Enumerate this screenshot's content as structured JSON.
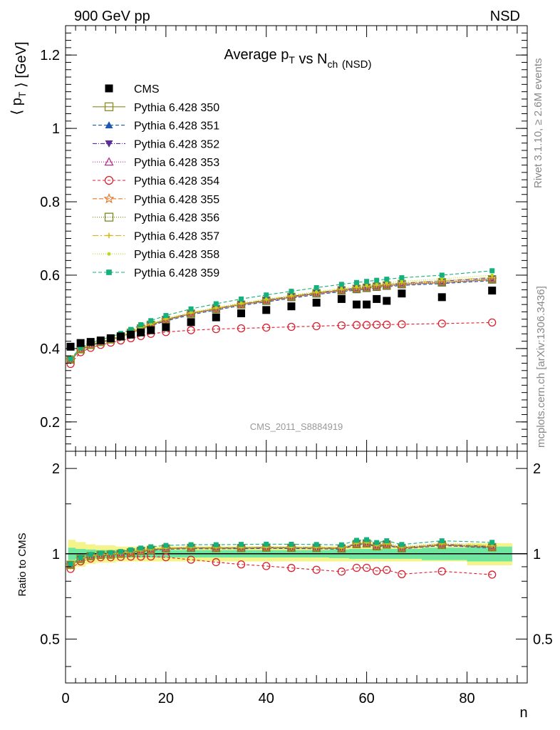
{
  "header": {
    "left": "900 GeV pp",
    "right": "NSD"
  },
  "side_text": {
    "top": "Rivet 3.1.10, ≥ 2.6M events",
    "bottom": "mcplots.cern.ch [arXiv:1306.3436]"
  },
  "chart_data": [
    {
      "type": "scatter",
      "panel": "main",
      "title": "Average p_T vs N_ch (NSD)",
      "ylabel": "⟨ p_T ⟩ [GeV]",
      "xlim": [
        0,
        92
      ],
      "ylim": [
        0.12,
        1.28
      ],
      "yticks": [
        0.2,
        0.4,
        0.6,
        0.8,
        1,
        1.2
      ],
      "ytick_labels": [
        "0.2",
        "0.4",
        "0.6",
        "0.8",
        "1",
        "1.2"
      ],
      "annotation": "CMS_2011_S8884919",
      "x": [
        1,
        3,
        5,
        7,
        9,
        11,
        13,
        15,
        17,
        20,
        25,
        30,
        35,
        40,
        45,
        50,
        55,
        58,
        60,
        62,
        64,
        67,
        75,
        85
      ],
      "series": [
        {
          "name": "CMS",
          "color": "#000000",
          "marker": "square-filled",
          "dash": "none",
          "values": [
            0.405,
            0.415,
            0.418,
            0.422,
            0.428,
            0.433,
            0.438,
            0.444,
            0.45,
            0.458,
            0.472,
            0.485,
            0.496,
            0.505,
            0.515,
            0.525,
            0.535,
            0.52,
            0.52,
            0.535,
            0.53,
            0.55,
            0.54,
            0.558
          ]
        },
        {
          "name": "Pythia 6.428 350",
          "color": "#8b8b22",
          "marker": "square-open",
          "dash": "solid",
          "values": [
            0.37,
            0.398,
            0.41,
            0.418,
            0.425,
            0.433,
            0.443,
            0.455,
            0.465,
            0.478,
            0.495,
            0.508,
            0.52,
            0.53,
            0.54,
            0.55,
            0.558,
            0.562,
            0.565,
            0.568,
            0.571,
            0.575,
            0.58,
            0.588
          ]
        },
        {
          "name": "Pythia 6.428 351",
          "color": "#1e56b4",
          "marker": "triangle-up-filled",
          "dash": "5 3",
          "values": [
            0.368,
            0.396,
            0.408,
            0.416,
            0.423,
            0.431,
            0.441,
            0.452,
            0.462,
            0.475,
            0.492,
            0.505,
            0.517,
            0.527,
            0.537,
            0.547,
            0.555,
            0.559,
            0.562,
            0.565,
            0.568,
            0.572,
            0.577,
            0.585
          ]
        },
        {
          "name": "Pythia 6.428 352",
          "color": "#5b2d9a",
          "marker": "triangle-down-filled",
          "dash": "6 2 1 2",
          "values": [
            0.37,
            0.398,
            0.41,
            0.418,
            0.425,
            0.433,
            0.443,
            0.455,
            0.465,
            0.479,
            0.496,
            0.509,
            0.521,
            0.532,
            0.542,
            0.552,
            0.56,
            0.565,
            0.568,
            0.571,
            0.574,
            0.578,
            0.584,
            0.592
          ]
        },
        {
          "name": "Pythia 6.428 353",
          "color": "#b0308e",
          "marker": "triangle-up-open",
          "dash": "1 2",
          "values": [
            0.369,
            0.397,
            0.409,
            0.417,
            0.424,
            0.432,
            0.442,
            0.453,
            0.463,
            0.477,
            0.494,
            0.507,
            0.519,
            0.529,
            0.539,
            0.549,
            0.557,
            0.561,
            0.564,
            0.567,
            0.57,
            0.574,
            0.579,
            0.587
          ]
        },
        {
          "name": "Pythia 6.428 354",
          "color": "#dc1e2d",
          "marker": "circle-open",
          "dash": "4 3",
          "values": [
            0.358,
            0.39,
            0.402,
            0.41,
            0.416,
            0.422,
            0.428,
            0.434,
            0.44,
            0.445,
            0.45,
            0.453,
            0.455,
            0.457,
            0.459,
            0.461,
            0.463,
            0.464,
            0.464,
            0.465,
            0.465,
            0.466,
            0.468,
            0.471
          ]
        },
        {
          "name": "Pythia 6.428 355",
          "color": "#e8782a",
          "marker": "star-open",
          "dash": "6 3",
          "values": [
            0.369,
            0.397,
            0.409,
            0.417,
            0.424,
            0.432,
            0.442,
            0.453,
            0.463,
            0.478,
            0.495,
            0.508,
            0.52,
            0.53,
            0.54,
            0.55,
            0.558,
            0.562,
            0.565,
            0.568,
            0.571,
            0.575,
            0.58,
            0.588
          ]
        },
        {
          "name": "Pythia 6.428 356",
          "color": "#7a8a1e",
          "marker": "square-open",
          "dash": "1 2",
          "values": [
            0.37,
            0.398,
            0.41,
            0.418,
            0.425,
            0.433,
            0.443,
            0.454,
            0.464,
            0.478,
            0.495,
            0.508,
            0.52,
            0.531,
            0.541,
            0.551,
            0.559,
            0.563,
            0.566,
            0.569,
            0.572,
            0.576,
            0.581,
            0.589
          ]
        },
        {
          "name": "Pythia 6.428 357",
          "color": "#d4b71a",
          "marker": "cross-small",
          "dash": "8 3 2 3",
          "values": [
            0.371,
            0.399,
            0.411,
            0.419,
            0.426,
            0.434,
            0.444,
            0.456,
            0.466,
            0.48,
            0.497,
            0.51,
            0.522,
            0.533,
            0.543,
            0.553,
            0.561,
            0.566,
            0.569,
            0.572,
            0.575,
            0.579,
            0.585,
            0.594
          ]
        },
        {
          "name": "Pythia 6.428 358",
          "color": "#bcd61a",
          "marker": "dot-small",
          "dash": "1 2",
          "values": [
            0.371,
            0.4,
            0.412,
            0.42,
            0.427,
            0.436,
            0.446,
            0.458,
            0.468,
            0.482,
            0.499,
            0.512,
            0.524,
            0.535,
            0.545,
            0.555,
            0.564,
            0.569,
            0.572,
            0.575,
            0.579,
            0.583,
            0.59,
            0.6
          ]
        },
        {
          "name": "Pythia 6.428 359",
          "color": "#15b07c",
          "marker": "square-filled-small",
          "dash": "5 3",
          "values": [
            0.372,
            0.402,
            0.415,
            0.424,
            0.432,
            0.441,
            0.452,
            0.465,
            0.476,
            0.49,
            0.508,
            0.522,
            0.535,
            0.546,
            0.556,
            0.566,
            0.575,
            0.58,
            0.583,
            0.586,
            0.589,
            0.593,
            0.6,
            0.612
          ]
        }
      ]
    },
    {
      "type": "scatter",
      "panel": "ratio",
      "ylabel": "Ratio to CMS",
      "xlabel": "n",
      "xlim": [
        0,
        92
      ],
      "xticks": [
        0,
        20,
        40,
        60,
        80
      ],
      "xtick_labels": [
        "0",
        "20",
        "40",
        "60",
        "80"
      ],
      "ylim": [
        0.35,
        2.3
      ],
      "yticks": [
        0.5,
        1,
        2
      ],
      "ytick_labels": [
        "0.5",
        "1",
        "2"
      ],
      "band_colors": {
        "stat": "#6ee6a0",
        "total": "#f4f48a"
      },
      "x": [
        1,
        3,
        5,
        7,
        9,
        11,
        13,
        15,
        17,
        20,
        25,
        30,
        35,
        40,
        45,
        50,
        55,
        58,
        60,
        62,
        64,
        67,
        75,
        85
      ],
      "series": [
        {
          "name": "Pythia 6.428 350",
          "values": [
            0.914,
            0.959,
            0.981,
            0.991,
            0.993,
            1.0,
            1.011,
            1.025,
            1.033,
            1.044,
            1.049,
            1.047,
            1.048,
            1.05,
            1.049,
            1.048,
            1.043,
            1.081,
            1.087,
            1.062,
            1.077,
            1.045,
            1.074,
            1.054
          ]
        },
        {
          "name": "Pythia 6.428 351",
          "values": [
            0.909,
            0.954,
            0.976,
            0.986,
            0.988,
            0.995,
            1.007,
            1.018,
            1.027,
            1.037,
            1.042,
            1.041,
            1.042,
            1.044,
            1.043,
            1.042,
            1.037,
            1.075,
            1.081,
            1.056,
            1.072,
            1.04,
            1.069,
            1.048
          ]
        },
        {
          "name": "Pythia 6.428 352",
          "values": [
            0.914,
            0.959,
            0.981,
            0.991,
            0.993,
            1.0,
            1.011,
            1.025,
            1.033,
            1.046,
            1.051,
            1.049,
            1.05,
            1.053,
            1.052,
            1.051,
            1.047,
            1.087,
            1.092,
            1.067,
            1.083,
            1.051,
            1.081,
            1.061
          ]
        },
        {
          "name": "Pythia 6.428 353",
          "values": [
            0.911,
            0.957,
            0.978,
            0.988,
            0.991,
            0.998,
            1.009,
            1.02,
            1.029,
            1.041,
            1.047,
            1.045,
            1.046,
            1.048,
            1.047,
            1.046,
            1.041,
            1.079,
            1.085,
            1.06,
            1.075,
            1.044,
            1.072,
            1.052
          ]
        },
        {
          "name": "Pythia 6.428 354",
          "values": [
            0.884,
            0.94,
            0.962,
            0.972,
            0.972,
            0.975,
            0.977,
            0.977,
            0.978,
            0.972,
            0.953,
            0.934,
            0.917,
            0.905,
            0.891,
            0.878,
            0.865,
            0.892,
            0.892,
            0.869,
            0.877,
            0.847,
            0.867,
            0.844
          ]
        },
        {
          "name": "Pythia 6.428 355",
          "values": [
            0.911,
            0.957,
            0.978,
            0.988,
            0.991,
            0.998,
            1.009,
            1.02,
            1.029,
            1.044,
            1.049,
            1.047,
            1.048,
            1.05,
            1.049,
            1.048,
            1.043,
            1.081,
            1.087,
            1.062,
            1.077,
            1.045,
            1.074,
            1.054
          ]
        },
        {
          "name": "Pythia 6.428 356",
          "values": [
            0.914,
            0.959,
            0.981,
            0.991,
            0.993,
            1.0,
            1.011,
            1.023,
            1.031,
            1.044,
            1.049,
            1.047,
            1.048,
            1.052,
            1.05,
            1.05,
            1.045,
            1.083,
            1.088,
            1.064,
            1.079,
            1.047,
            1.076,
            1.056
          ]
        },
        {
          "name": "Pythia 6.428 357",
          "values": [
            0.916,
            0.961,
            0.983,
            0.993,
            0.995,
            1.002,
            1.014,
            1.027,
            1.036,
            1.048,
            1.053,
            1.052,
            1.052,
            1.055,
            1.054,
            1.053,
            1.049,
            1.088,
            1.094,
            1.069,
            1.085,
            1.053,
            1.083,
            1.065
          ]
        },
        {
          "name": "Pythia 6.428 358",
          "values": [
            0.916,
            0.964,
            0.986,
            0.995,
            0.998,
            1.007,
            1.018,
            1.032,
            1.04,
            1.052,
            1.057,
            1.056,
            1.056,
            1.059,
            1.058,
            1.057,
            1.054,
            1.094,
            1.1,
            1.075,
            1.092,
            1.06,
            1.093,
            1.075
          ]
        },
        {
          "name": "Pythia 6.428 359",
          "values": [
            0.919,
            0.969,
            0.993,
            1.005,
            1.009,
            1.018,
            1.032,
            1.047,
            1.058,
            1.07,
            1.076,
            1.076,
            1.079,
            1.081,
            1.08,
            1.078,
            1.075,
            1.115,
            1.121,
            1.095,
            1.111,
            1.078,
            1.111,
            1.097
          ]
        }
      ]
    }
  ]
}
